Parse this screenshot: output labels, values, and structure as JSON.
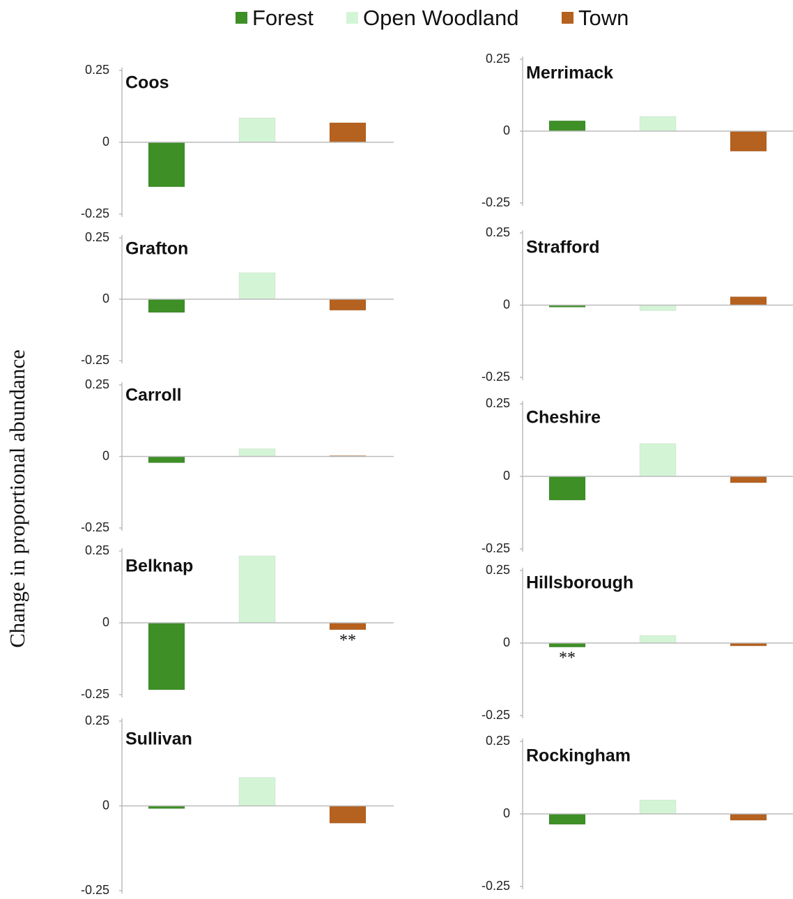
{
  "legend": [
    {
      "name": "Forest",
      "color": "#3d8f26"
    },
    {
      "name": "Open Woodland",
      "color": "#d3f5d6"
    },
    {
      "name": "Town",
      "color": "#b5611f"
    }
  ],
  "y_label": "Change in proportional abundance",
  "chart_data": [
    {
      "type": "bar",
      "title": "Coos",
      "categories": [
        null,
        null,
        null
      ],
      "values": [
        -0.155,
        0.085,
        0.068
      ],
      "ylim": [
        -0.25,
        0.25
      ],
      "yticks": [
        -0.25,
        0,
        0.25
      ]
    },
    {
      "type": "bar",
      "title": "Grafton",
      "categories": [
        null,
        null,
        null
      ],
      "values": [
        -0.054,
        0.108,
        -0.045
      ],
      "ylim": [
        -0.25,
        0.25
      ],
      "yticks": [
        -0.25,
        0,
        0.25
      ]
    },
    {
      "type": "bar",
      "title": "Carroll",
      "categories": [
        null,
        null,
        null
      ],
      "values": [
        -0.022,
        0.027,
        0.003
      ],
      "ylim": [
        -0.25,
        0.25
      ],
      "yticks": [
        -0.25,
        0,
        0.25
      ]
    },
    {
      "type": "bar",
      "title": "Belknap",
      "categories": [
        null,
        null,
        null
      ],
      "values": [
        -0.233,
        0.233,
        -0.024
      ],
      "ylim": [
        -0.25,
        0.25
      ],
      "yticks": [
        -0.25,
        0,
        0.25
      ],
      "annotations": [
        {
          "text": "**",
          "at": "Town"
        }
      ]
    },
    {
      "type": "bar",
      "title": "Sullivan",
      "categories": [
        null,
        null,
        null
      ],
      "values": [
        -0.008,
        0.084,
        -0.051
      ],
      "ylim": [
        -0.25,
        0.25
      ],
      "yticks": [
        -0.25,
        0,
        0.25
      ]
    },
    {
      "type": "bar",
      "title": "Merrimack",
      "categories": [
        null,
        null,
        null
      ],
      "values": [
        0.036,
        0.051,
        -0.07
      ],
      "ylim": [
        -0.25,
        0.25
      ],
      "yticks": [
        -0.25,
        0,
        0.25
      ]
    },
    {
      "type": "bar",
      "title": "Strafford",
      "categories": [
        null,
        null,
        null
      ],
      "values": [
        -0.007,
        -0.019,
        0.029
      ],
      "ylim": [
        -0.25,
        0.25
      ],
      "yticks": [
        -0.25,
        0,
        0.25
      ]
    },
    {
      "type": "bar",
      "title": "Cheshire",
      "categories": [
        null,
        null,
        null
      ],
      "values": [
        -0.082,
        0.113,
        -0.022
      ],
      "ylim": [
        -0.25,
        0.25
      ],
      "yticks": [
        -0.25,
        0,
        0.25
      ]
    },
    {
      "type": "bar",
      "title": "Hillsborough",
      "categories": [
        null,
        null,
        null
      ],
      "values": [
        -0.014,
        0.026,
        -0.01
      ],
      "ylim": [
        -0.25,
        0.25
      ],
      "yticks": [
        -0.25,
        0,
        0.25
      ],
      "annotations": [
        {
          "text": "**",
          "at": "Forest"
        }
      ]
    },
    {
      "type": "bar",
      "title": "Rockingham",
      "categories": [
        null,
        null,
        null
      ],
      "values": [
        -0.036,
        0.048,
        -0.022
      ],
      "ylim": [
        -0.25,
        0.25
      ],
      "yticks": [
        -0.25,
        0,
        0.25
      ]
    }
  ]
}
